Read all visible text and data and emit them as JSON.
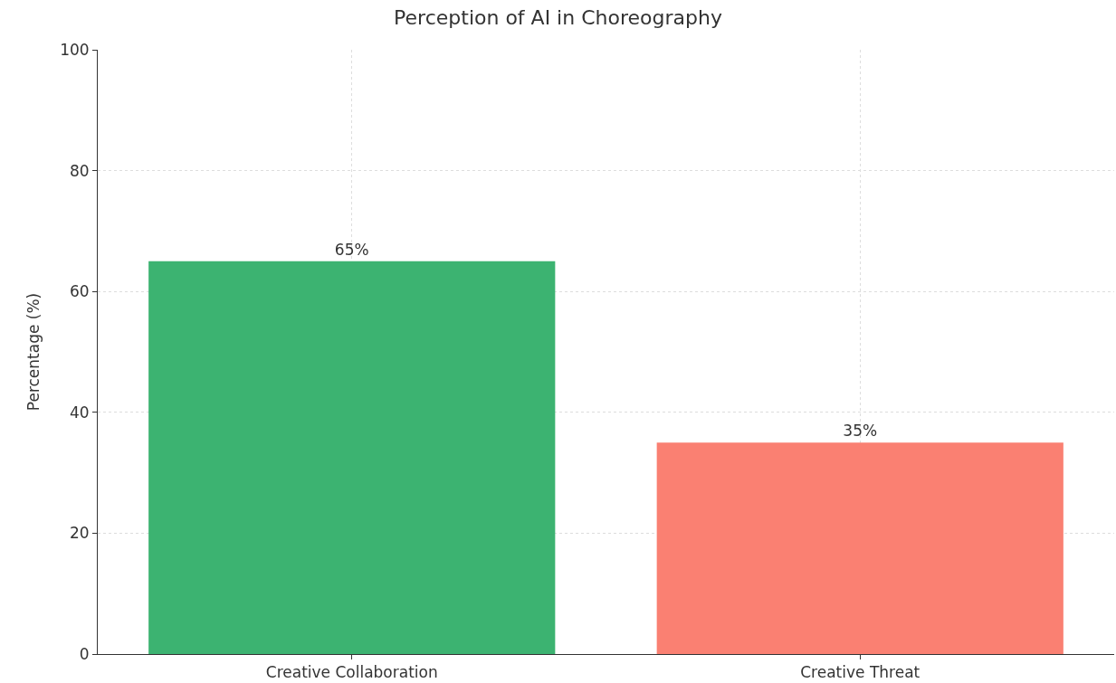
{
  "chart_data": {
    "type": "bar",
    "title": "Perception of AI in Choreography",
    "ylabel": "Percentage (%)",
    "categories": [
      "Creative Collaboration",
      "Creative Threat"
    ],
    "values": [
      65,
      35
    ],
    "colors": [
      "#3cb371",
      "#fa8072"
    ],
    "value_labels": [
      "65%",
      "35%"
    ],
    "ylim": [
      0,
      100
    ],
    "yticks": [
      0,
      20,
      40,
      60,
      80,
      100
    ],
    "grid": true
  }
}
